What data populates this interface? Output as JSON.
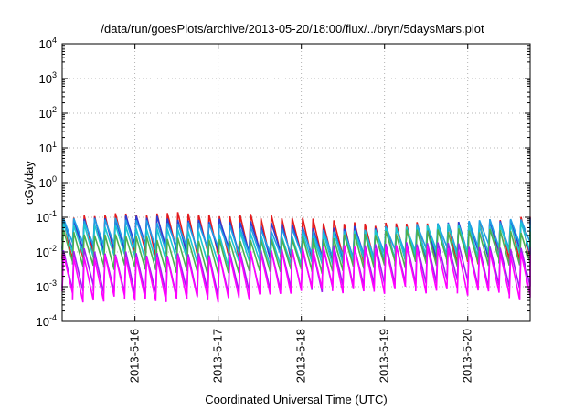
{
  "chart_data": {
    "type": "line",
    "title": "/data/run/goesPlots/archive/2013-05-20/18:00/flux/../bryn/5daysMars.plot",
    "xlabel": "Coordinated Universal Time (UTC)",
    "ylabel": "cGy/day",
    "yscale": "log",
    "ylim": [
      0.0001,
      10000
    ],
    "xlim": [
      "2013-05-15 03:00",
      "2013-05-20 18:00"
    ],
    "y_ticks": [
      {
        "value": 0.0001,
        "base": "10",
        "exp": "-4"
      },
      {
        "value": 0.001,
        "base": "10",
        "exp": "-3"
      },
      {
        "value": 0.01,
        "base": "10",
        "exp": "-2"
      },
      {
        "value": 0.1,
        "base": "10",
        "exp": "-1"
      },
      {
        "value": 1,
        "base": "10",
        "exp": "0"
      },
      {
        "value": 10,
        "base": "10",
        "exp": "1"
      },
      {
        "value": 100,
        "base": "10",
        "exp": "2"
      },
      {
        "value": 1000,
        "base": "10",
        "exp": "3"
      },
      {
        "value": 10000,
        "base": "10",
        "exp": "4"
      }
    ],
    "x_ticks": [
      {
        "value": "2013-05-16 00:00",
        "label": "2013-5-16"
      },
      {
        "value": "2013-05-17 00:00",
        "label": "2013-5-17"
      },
      {
        "value": "2013-05-18 00:00",
        "label": "2013-5-18"
      },
      {
        "value": "2013-05-19 00:00",
        "label": "2013-5-19"
      },
      {
        "value": "2013-05-20 00:00",
        "label": "2013-5-20"
      }
    ],
    "grid": true,
    "legend": "none",
    "sawtooth_period_hours": 3,
    "series_pattern": "sawtooth: peak value then decay toward trough value each period",
    "series": [
      {
        "color": "#e41a1c",
        "peak": 0.09,
        "trough": 0.007
      },
      {
        "color": "#2b3fd6",
        "peak": 0.07,
        "trough": 0.009
      },
      {
        "color": "#1f9fe6",
        "peak": 0.06,
        "trough": 0.011
      },
      {
        "color": "#1cc7d0",
        "peak": 0.045,
        "trough": 0.006
      },
      {
        "color": "#4caf50",
        "peak": 0.03,
        "trough": 0.0035
      },
      {
        "color": "#a020f0",
        "peak": 0.012,
        "trough": 0.0009
      },
      {
        "color": "#ff00ff",
        "peak": 0.01,
        "trough": 0.0006
      }
    ]
  }
}
